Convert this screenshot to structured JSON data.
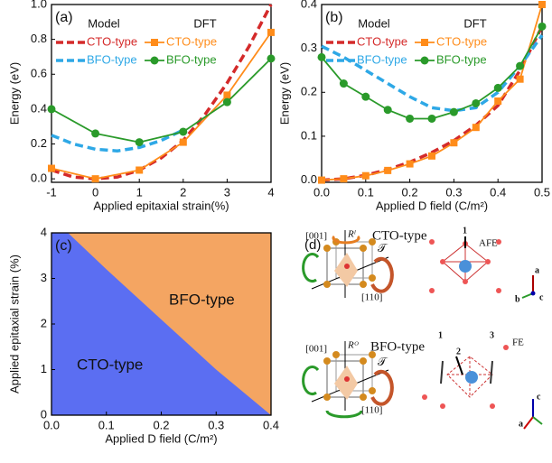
{
  "chart_data": [
    {
      "type": "line",
      "panel_label": "(a)",
      "xlabel": "Applied epitaxial strain(%)",
      "ylabel": "Energy (eV)",
      "legend_headers": [
        "Model",
        "DFT"
      ],
      "xlim": [
        -1,
        4
      ],
      "xticks": [
        -1,
        0,
        1,
        2,
        3,
        4
      ],
      "ylim": [
        -0.02,
        1.0
      ],
      "yticks": [
        {
          "value": 0,
          "label": "0.0"
        },
        0.2,
        0.4,
        0.6,
        0.8,
        {
          "value": 1,
          "label": "1.0"
        }
      ],
      "series": [
        {
          "name": "CTO-type",
          "color": "#d42a2a",
          "dash": true,
          "x": [
            -1,
            -0.5,
            0,
            0.5,
            1,
            1.5,
            2,
            2.5,
            3,
            3.5,
            4
          ],
          "values": [
            0.05,
            0.01,
            0.0,
            0.01,
            0.05,
            0.12,
            0.22,
            0.37,
            0.55,
            0.76,
            1.0
          ]
        },
        {
          "name": "CTO-type",
          "color": "#ff8c1a",
          "marker": "square",
          "x": [
            -1,
            0,
            1,
            2,
            3,
            4
          ],
          "values": [
            0.06,
            0.0,
            0.05,
            0.21,
            0.48,
            0.84
          ]
        },
        {
          "name": "BFO-type",
          "color": "#2ea8e6",
          "dash": true,
          "x": [
            -1,
            -0.5,
            0,
            0.5,
            1,
            1.5,
            2
          ],
          "values": [
            0.25,
            0.2,
            0.17,
            0.16,
            0.18,
            0.22,
            0.28
          ]
        },
        {
          "name": "BFO-type",
          "color": "#2a9a2a",
          "marker": "circle",
          "x": [
            -1,
            0,
            1,
            2,
            3,
            4
          ],
          "values": [
            0.4,
            0.26,
            0.21,
            0.27,
            0.44,
            0.69
          ]
        }
      ]
    },
    {
      "type": "line",
      "panel_label": "(b)",
      "xlabel": "Applied D field (C/m²)",
      "ylabel": "Energy (eV)",
      "legend_headers": [
        "Model",
        "DFT"
      ],
      "xlim": [
        0,
        0.5
      ],
      "xticks": [
        {
          "value": 0,
          "label": "0.0"
        },
        0.1,
        0.2,
        0.3,
        0.4,
        0.5
      ],
      "ylim": [
        -0.005,
        0.4
      ],
      "yticks": [
        {
          "value": 0,
          "label": "0.0"
        },
        0.1,
        0.2,
        0.3,
        0.4
      ],
      "series": [
        {
          "name": "CTO-type",
          "color": "#d42a2a",
          "dash": true,
          "x": [
            0,
            0.05,
            0.1,
            0.15,
            0.2,
            0.25,
            0.3,
            0.35,
            0.4,
            0.45,
            0.5
          ],
          "values": [
            0,
            0.003,
            0.011,
            0.024,
            0.041,
            0.063,
            0.09,
            0.125,
            0.17,
            0.25,
            0.35
          ]
        },
        {
          "name": "CTO-type",
          "color": "#ff8c1a",
          "marker": "square",
          "x": [
            0,
            0.05,
            0.1,
            0.15,
            0.2,
            0.25,
            0.3,
            0.35,
            0.4,
            0.45,
            0.5
          ],
          "values": [
            0,
            0.003,
            0.01,
            0.022,
            0.037,
            0.055,
            0.085,
            0.12,
            0.18,
            0.23,
            0.4
          ]
        },
        {
          "name": "BFO-type",
          "color": "#2ea8e6",
          "dash": true,
          "x": [
            0,
            0.05,
            0.1,
            0.15,
            0.2,
            0.25,
            0.3,
            0.35,
            0.4,
            0.45,
            0.5
          ],
          "values": [
            0.305,
            0.28,
            0.25,
            0.22,
            0.19,
            0.165,
            0.158,
            0.165,
            0.2,
            0.26,
            0.33
          ]
        },
        {
          "name": "BFO-type",
          "color": "#2a9a2a",
          "marker": "circle",
          "x": [
            0,
            0.05,
            0.1,
            0.15,
            0.2,
            0.25,
            0.3,
            0.35,
            0.4,
            0.45,
            0.5
          ],
          "values": [
            0.28,
            0.22,
            0.19,
            0.16,
            0.14,
            0.14,
            0.155,
            0.175,
            0.21,
            0.26,
            0.35
          ]
        }
      ]
    },
    {
      "type": "phase",
      "panel_label": "(c)",
      "xlabel": "Applied D field (C/m²)",
      "ylabel": "Applied epitaxial strain (%)",
      "xlim": [
        0,
        0.4
      ],
      "xticks": [
        {
          "value": 0,
          "label": "0.0"
        },
        0.1,
        0.2,
        0.3,
        0.4
      ],
      "ylim": [
        0,
        4
      ],
      "yticks": [
        0,
        1,
        2,
        3,
        4
      ],
      "boundary": {
        "x": [
          0.03,
          0.1,
          0.2,
          0.3,
          0.4
        ],
        "values": [
          4,
          3.2,
          2.1,
          1.0,
          0
        ]
      },
      "regions": [
        {
          "name": "CTO-type",
          "color": "#5b6ef2"
        },
        {
          "name": "BFO-type",
          "color": "#f4a562"
        }
      ]
    }
  ],
  "diagram": {
    "panel_label": "(d)",
    "top": {
      "axis1": "[001]",
      "axis2": "[110]",
      "rot": "Rˡ",
      "trans": "𝒯",
      "name": "CTO-type",
      "order": "AFE",
      "site": "1",
      "a": "a",
      "b": "b",
      "c": "c"
    },
    "bottom": {
      "axis1": "[001]",
      "axis2": "[110]",
      "rot": "Rᴼ",
      "trans": "𝒯",
      "name": "BFO-type",
      "order": "FE",
      "site1": "1",
      "site2": "2",
      "site3": "3",
      "a": "a",
      "c": "c"
    }
  }
}
